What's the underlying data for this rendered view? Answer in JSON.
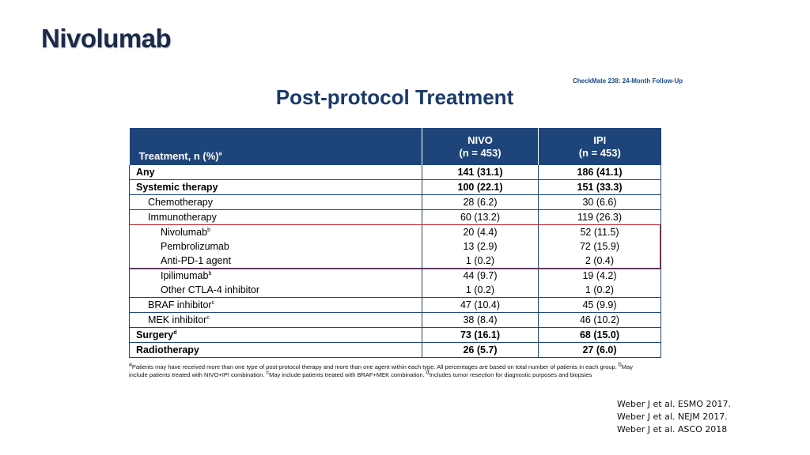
{
  "slide": {
    "title": "Nivolumab",
    "study_label": "CheckMate 238: 24-Month Follow-Up",
    "subtitle": "Post-protocol Treatment"
  },
  "table": {
    "header": {
      "treatment": "Treatment, n (%)",
      "treatment_sup": "a",
      "nivo_line1": "NIVO",
      "nivo_line2": "(n = 453)",
      "ipi_line1": "IPI",
      "ipi_line2": "(n = 453)"
    },
    "rows": [
      {
        "label": "Any",
        "sup": "",
        "nivo": "141 (31.1)",
        "ipi": "186 (41.1)"
      },
      {
        "label": "Systemic therapy",
        "sup": "",
        "nivo": "100 (22.1)",
        "ipi": "151 (33.3)"
      },
      {
        "label": "Chemotherapy",
        "sup": "",
        "nivo": "28 (6.2)",
        "ipi": "30 (6.6)"
      },
      {
        "label": "Immunotherapy",
        "sup": "",
        "nivo": "60 (13.2)",
        "ipi": "119 (26.3)"
      },
      {
        "label": "Nivolumab",
        "sup": "b",
        "nivo": "20 (4.4)",
        "ipi": "52 (11.5)"
      },
      {
        "label": "Pembrolizumab",
        "sup": "",
        "nivo": "13 (2.9)",
        "ipi": "72 (15.9)"
      },
      {
        "label": "Anti-PD-1 agent",
        "sup": "",
        "nivo": "1 (0.2)",
        "ipi": "2 (0.4)"
      },
      {
        "label": "Ipilimumab",
        "sup": "b",
        "nivo": "44 (9.7)",
        "ipi": "19 (4.2)"
      },
      {
        "label": "Other CTLA-4 inhibitor",
        "sup": "",
        "nivo": "1 (0.2)",
        "ipi": "1 (0.2)"
      },
      {
        "label": "BRAF inhibitor",
        "sup": "c",
        "nivo": "47 (10.4)",
        "ipi": "45 (9.9)"
      },
      {
        "label": "MEK inhibitor",
        "sup": "c",
        "nivo": "38 (8.4)",
        "ipi": "46 (10.2)"
      },
      {
        "label": "Surgery",
        "sup": "d",
        "nivo": "73 (16.1)",
        "ipi": "68 (15.0)"
      },
      {
        "label": "Radiotherapy",
        "sup": "",
        "nivo": "26 (5.7)",
        "ipi": "27 (6.0)"
      }
    ]
  },
  "footnote": {
    "a_mark": "a",
    "a_text": "Patients may have received more than one type of post-protocol therapy and more than one agent within each type. All percentages are based on total number of patients in each group. ",
    "b_mark": "b",
    "b_text": "May include patients treated with NIVO+IPI combination. ",
    "c_mark": "c",
    "c_text": "May include patients treated with BRAF+MEK combination. ",
    "d_mark": "d",
    "d_text": "Includes tumor resection for diagnostic purposes and biopsies"
  },
  "references": [
    "Weber J et al. ESMO 2017.",
    "Weber J et al. NEJM 2017.",
    "Weber J et al. ASCO 2018"
  ],
  "colors": {
    "header_bg": "#1e4579",
    "highlight_box": "#c0262c",
    "title": "#1b2a4a"
  }
}
